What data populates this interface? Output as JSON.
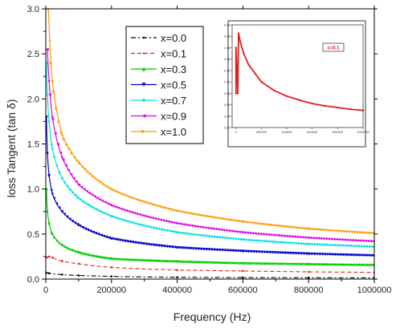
{
  "chart_data": [
    {
      "type": "line",
      "xlabel": "Frequency (Hz)",
      "ylabel": "loss Tangent (tan δ)",
      "xlim": [
        0,
        1000000
      ],
      "ylim": [
        0,
        3.0
      ],
      "xticks": [
        "0",
        "200000",
        "400000",
        "600000",
        "800000",
        "1000000"
      ],
      "yticks": [
        "0.0",
        "0.5",
        "1.0",
        "1.5",
        "2.0",
        "2.5",
        "3.0"
      ],
      "grid": false,
      "legend_position": "top-center",
      "series": [
        {
          "name": "x=0.0",
          "color": "#000000",
          "marker": "none",
          "x": [
            2000,
            10000,
            50000,
            100000,
            200000,
            400000,
            600000,
            800000,
            1000000
          ],
          "y": [
            0.07,
            0.065,
            0.05,
            0.04,
            0.03,
            0.02,
            0.017,
            0.015,
            0.014
          ]
        },
        {
          "name": "x=0.1",
          "color": "#e02020",
          "marker": "none",
          "x": [
            3000,
            10000,
            20000,
            50000,
            100000,
            200000,
            400000,
            600000,
            800000,
            1000000
          ],
          "y": [
            0.24,
            0.25,
            0.24,
            0.2,
            0.17,
            0.13,
            0.1,
            0.09,
            0.08,
            0.075
          ]
        },
        {
          "name": "x=0.3",
          "color": "#00cc00",
          "marker": "triangle-up",
          "x": [
            2000,
            5000,
            10000,
            20000,
            50000,
            100000,
            200000,
            400000,
            600000,
            800000,
            1000000
          ],
          "y": [
            1.0,
            0.75,
            0.62,
            0.5,
            0.38,
            0.3,
            0.23,
            0.2,
            0.18,
            0.17,
            0.16
          ]
        },
        {
          "name": "x=0.5",
          "color": "#0000cc",
          "marker": "triangle-down",
          "x": [
            2000,
            5000,
            10000,
            20000,
            50000,
            100000,
            200000,
            400000,
            600000,
            800000,
            1000000
          ],
          "y": [
            1.8,
            1.4,
            1.15,
            0.95,
            0.75,
            0.6,
            0.45,
            0.35,
            0.31,
            0.28,
            0.26
          ]
        },
        {
          "name": "x=0.7",
          "color": "#00e0e0",
          "marker": "diamond",
          "x": [
            2000,
            5000,
            10000,
            20000,
            50000,
            100000,
            200000,
            400000,
            600000,
            800000,
            1000000
          ],
          "y": [
            2.4,
            2.05,
            1.75,
            1.45,
            1.12,
            0.9,
            0.7,
            0.52,
            0.44,
            0.39,
            0.36
          ]
        },
        {
          "name": "x=0.9",
          "color": "#e000e0",
          "marker": "triangle-left",
          "x": [
            5000,
            10000,
            20000,
            50000,
            100000,
            200000,
            400000,
            600000,
            800000,
            1000000
          ],
          "y": [
            2.55,
            2.2,
            1.8,
            1.35,
            1.05,
            0.82,
            0.62,
            0.52,
            0.46,
            0.42
          ]
        },
        {
          "name": "x=1.0",
          "color": "#ff9900",
          "marker": "triangle-right",
          "x": [
            8000,
            12000,
            20000,
            50000,
            100000,
            200000,
            400000,
            600000,
            800000,
            1000000
          ],
          "y": [
            3.0,
            2.65,
            2.2,
            1.6,
            1.3,
            1.0,
            0.76,
            0.64,
            0.56,
            0.51
          ]
        }
      ]
    },
    {
      "type": "line",
      "inset": true,
      "xlim": [
        -30000,
        1000000
      ],
      "ylim": [
        0.02,
        0.2
      ],
      "xticks": [
        "0",
        "200000",
        "400000",
        "600000",
        "800000",
        "1000000"
      ],
      "yticks": [
        "0.02",
        "0.04",
        "0.06",
        "0.08",
        "0.10",
        "0.12",
        "0.14",
        "0.16",
        "0.18",
        "0.20"
      ],
      "series": [
        {
          "name": "x=0.1",
          "color": "#e02020",
          "x": [
            0,
            0,
            15000,
            20000,
            35000,
            60000,
            100000,
            150000,
            200000,
            300000,
            400000,
            500000,
            600000,
            700000,
            800000,
            900000,
            1000000
          ],
          "y": [
            0.08,
            0.16,
            0.08,
            0.185,
            0.17,
            0.15,
            0.13,
            0.115,
            0.1,
            0.085,
            0.075,
            0.068,
            0.062,
            0.058,
            0.055,
            0.052,
            0.05
          ]
        }
      ]
    }
  ]
}
